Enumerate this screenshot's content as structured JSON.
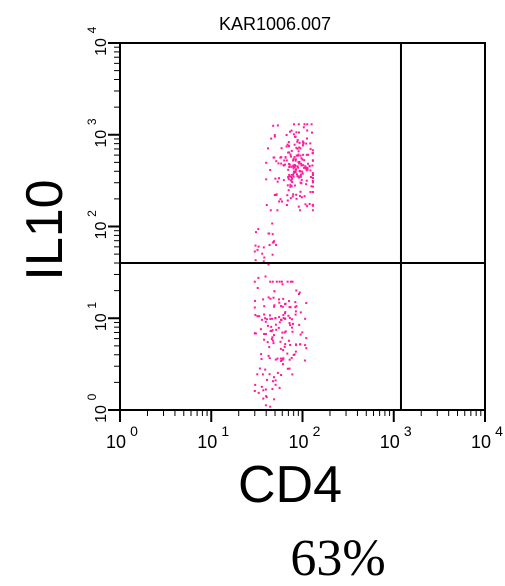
{
  "chart_data": {
    "type": "scatter",
    "title": "KAR1006.007",
    "xlabel": "CD4",
    "ylabel": "IL10",
    "xscale": "log",
    "yscale": "log",
    "xlim": [
      1,
      10000
    ],
    "ylim": [
      1,
      10000
    ],
    "x_ticks": [
      {
        "base": "10",
        "exp": "0"
      },
      {
        "base": "10",
        "exp": "1"
      },
      {
        "base": "10",
        "exp": "2"
      },
      {
        "base": "10",
        "exp": "3"
      },
      {
        "base": "10",
        "exp": "4"
      }
    ],
    "y_ticks": [
      {
        "base": "10",
        "exp": "0"
      },
      {
        "base": "10",
        "exp": "1"
      },
      {
        "base": "10",
        "exp": "2"
      },
      {
        "base": "10",
        "exp": "3"
      },
      {
        "base": "10",
        "exp": "4"
      }
    ],
    "quadrant_gates": {
      "x": 1200,
      "y": 40
    },
    "dot_color": "#ff1a9e",
    "populations": [
      {
        "x_range": [
          40,
          130
        ],
        "y_range": [
          150,
          1300
        ],
        "x_center": 85,
        "y_center": 450,
        "count": 210
      },
      {
        "x_range": [
          30,
          110
        ],
        "y_range": [
          1.2,
          25
        ],
        "x_center": 55,
        "y_center": 8,
        "count": 150
      },
      {
        "x_range": [
          30,
          60
        ],
        "y_range": [
          25,
          200
        ],
        "x_center": 40,
        "y_center": 60,
        "count": 25
      },
      {
        "x_range": [
          30,
          60
        ],
        "y_range": [
          1,
          3
        ],
        "x_center": 40,
        "y_center": 1.8,
        "count": 15
      }
    ],
    "footnote": "63%"
  }
}
